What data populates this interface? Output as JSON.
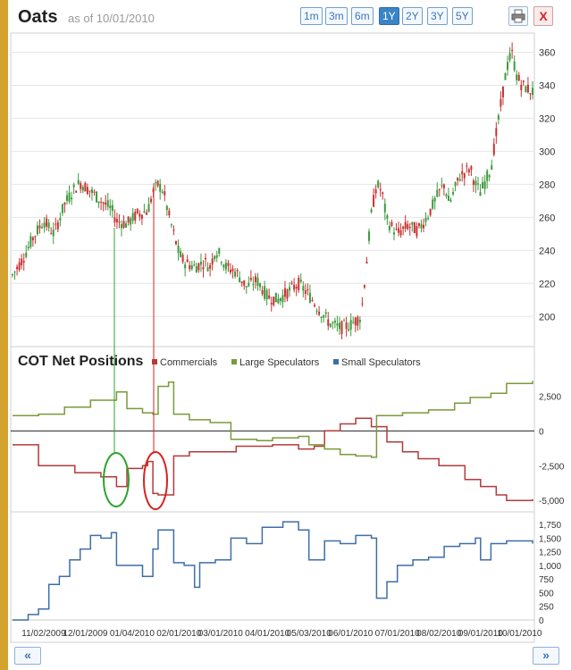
{
  "header": {
    "title": "Oats",
    "as_of": "as of 10/01/2010",
    "ranges": [
      {
        "label": "1m",
        "active": false
      },
      {
        "label": "3m",
        "active": false
      },
      {
        "label": "6m",
        "active": false
      },
      {
        "label": "1Y",
        "active": true
      },
      {
        "label": "2Y",
        "active": false
      },
      {
        "label": "3Y",
        "active": false
      },
      {
        "label": "5Y",
        "active": false
      }
    ],
    "print_icon": "printer-icon",
    "close_label": "X"
  },
  "cot": {
    "title": "COT Net Positions",
    "legend": [
      {
        "name": "Commercials",
        "color": "#b33a3a"
      },
      {
        "name": "Large Speculators",
        "color": "#7a9a3a"
      },
      {
        "name": "Small Speculators",
        "color": "#3e6ea8"
      }
    ]
  },
  "nav": {
    "prev_label": "«",
    "next_label": "»"
  },
  "chart_data": [
    {
      "type": "candlestick",
      "title": "Oats",
      "ylim": [
        185,
        370
      ],
      "yticks": [
        200,
        220,
        240,
        260,
        280,
        300,
        320,
        340,
        360
      ],
      "up_color": "#3d9a3d",
      "down_color": "#c83232",
      "close_points": [
        [
          0,
          225
        ],
        [
          0.02,
          235
        ],
        [
          0.04,
          248
        ],
        [
          0.06,
          258
        ],
        [
          0.08,
          250
        ],
        [
          0.1,
          268
        ],
        [
          0.12,
          278
        ],
        [
          0.13,
          281
        ],
        [
          0.15,
          276
        ],
        [
          0.17,
          270
        ],
        [
          0.19,
          265
        ],
        [
          0.2,
          258
        ],
        [
          0.22,
          256
        ],
        [
          0.24,
          262
        ],
        [
          0.26,
          264
        ],
        [
          0.27,
          275
        ],
        [
          0.28,
          280
        ],
        [
          0.29,
          276
        ],
        [
          0.3,
          262
        ],
        [
          0.31,
          250
        ],
        [
          0.32,
          238
        ],
        [
          0.33,
          233
        ],
        [
          0.35,
          230
        ],
        [
          0.37,
          233
        ],
        [
          0.38,
          230
        ],
        [
          0.39,
          240
        ],
        [
          0.4,
          237
        ],
        [
          0.41,
          230
        ],
        [
          0.43,
          227
        ],
        [
          0.45,
          218
        ],
        [
          0.47,
          222
        ],
        [
          0.49,
          212
        ],
        [
          0.51,
          210
        ],
        [
          0.53,
          215
        ],
        [
          0.55,
          220
        ],
        [
          0.57,
          213
        ],
        [
          0.59,
          204
        ],
        [
          0.61,
          196
        ],
        [
          0.63,
          193
        ],
        [
          0.65,
          195
        ],
        [
          0.67,
          200
        ],
        [
          0.68,
          230
        ],
        [
          0.69,
          262
        ],
        [
          0.7,
          280
        ],
        [
          0.71,
          276
        ],
        [
          0.72,
          258
        ],
        [
          0.74,
          250
        ],
        [
          0.76,
          255
        ],
        [
          0.78,
          252
        ],
        [
          0.8,
          262
        ],
        [
          0.82,
          275
        ],
        [
          0.83,
          280
        ],
        [
          0.84,
          268
        ],
        [
          0.86,
          285
        ],
        [
          0.88,
          290
        ],
        [
          0.89,
          280
        ],
        [
          0.9,
          275
        ],
        [
          0.92,
          290
        ],
        [
          0.93,
          310
        ],
        [
          0.94,
          330
        ],
        [
          0.95,
          350
        ],
        [
          0.96,
          360
        ],
        [
          0.97,
          345
        ],
        [
          0.98,
          340
        ],
        [
          1.0,
          336
        ]
      ]
    },
    {
      "type": "line",
      "title": "COT Net Positions",
      "ylim": [
        -5500,
        4000
      ],
      "yticks": [
        2500,
        0,
        -2500,
        -5000
      ],
      "zero_line": true,
      "series": [
        {
          "name": "Commercials",
          "color": "#b33a3a",
          "points": [
            [
              0,
              -1000
            ],
            [
              0.05,
              -2500
            ],
            [
              0.12,
              -3000
            ],
            [
              0.17,
              -3300
            ],
            [
              0.2,
              -4000
            ],
            [
              0.22,
              -2700
            ],
            [
              0.25,
              -2500
            ],
            [
              0.26,
              -2200
            ],
            [
              0.27,
              -4500
            ],
            [
              0.28,
              -4600
            ],
            [
              0.3,
              -4600
            ],
            [
              0.31,
              -1800
            ],
            [
              0.34,
              -1500
            ],
            [
              0.38,
              -1500
            ],
            [
              0.43,
              -1100
            ],
            [
              0.5,
              -1000
            ],
            [
              0.55,
              -1300
            ],
            [
              0.58,
              -1100
            ],
            [
              0.6,
              0
            ],
            [
              0.63,
              500
            ],
            [
              0.66,
              900
            ],
            [
              0.69,
              300
            ],
            [
              0.72,
              -800
            ],
            [
              0.75,
              -1500
            ],
            [
              0.78,
              -2000
            ],
            [
              0.82,
              -2500
            ],
            [
              0.87,
              -3500
            ],
            [
              0.9,
              -4000
            ],
            [
              0.93,
              -4600
            ],
            [
              0.95,
              -5000
            ],
            [
              1.0,
              -4900
            ]
          ]
        },
        {
          "name": "Large Speculators",
          "color": "#7a9a3a",
          "points": [
            [
              0,
              1100
            ],
            [
              0.05,
              1200
            ],
            [
              0.1,
              1700
            ],
            [
              0.15,
              2200
            ],
            [
              0.2,
              2800
            ],
            [
              0.22,
              1600
            ],
            [
              0.25,
              1300
            ],
            [
              0.27,
              1200
            ],
            [
              0.28,
              3200
            ],
            [
              0.3,
              3500
            ],
            [
              0.31,
              1200
            ],
            [
              0.34,
              800
            ],
            [
              0.38,
              600
            ],
            [
              0.42,
              -600
            ],
            [
              0.47,
              -700
            ],
            [
              0.5,
              -500
            ],
            [
              0.55,
              -400
            ],
            [
              0.57,
              -1000
            ],
            [
              0.6,
              -1300
            ],
            [
              0.63,
              -1700
            ],
            [
              0.66,
              -1800
            ],
            [
              0.69,
              -1900
            ],
            [
              0.7,
              1100
            ],
            [
              0.75,
              1300
            ],
            [
              0.8,
              1500
            ],
            [
              0.85,
              2000
            ],
            [
              0.88,
              2400
            ],
            [
              0.92,
              2700
            ],
            [
              0.95,
              3400
            ],
            [
              1.0,
              3600
            ]
          ]
        }
      ]
    },
    {
      "type": "line",
      "title": "",
      "ylim": [
        0,
        1900
      ],
      "yticks": [
        0,
        250,
        500,
        750,
        1000,
        1250,
        1500,
        1750
      ],
      "series": [
        {
          "name": "Small Speculators",
          "color": "#3e6ea8",
          "points": [
            [
              0,
              0
            ],
            [
              0.03,
              100
            ],
            [
              0.05,
              200
            ],
            [
              0.07,
              650
            ],
            [
              0.09,
              800
            ],
            [
              0.11,
              1100
            ],
            [
              0.13,
              1300
            ],
            [
              0.15,
              1550
            ],
            [
              0.17,
              1500
            ],
            [
              0.19,
              1600
            ],
            [
              0.2,
              1000
            ],
            [
              0.23,
              1000
            ],
            [
              0.25,
              800
            ],
            [
              0.27,
              1300
            ],
            [
              0.28,
              1650
            ],
            [
              0.3,
              1650
            ],
            [
              0.31,
              1050
            ],
            [
              0.33,
              1000
            ],
            [
              0.35,
              600
            ],
            [
              0.36,
              1050
            ],
            [
              0.39,
              1100
            ],
            [
              0.42,
              1500
            ],
            [
              0.45,
              1400
            ],
            [
              0.48,
              1700
            ],
            [
              0.52,
              1800
            ],
            [
              0.55,
              1650
            ],
            [
              0.57,
              1100
            ],
            [
              0.6,
              1450
            ],
            [
              0.63,
              1400
            ],
            [
              0.66,
              1550
            ],
            [
              0.69,
              1500
            ],
            [
              0.7,
              400
            ],
            [
              0.72,
              700
            ],
            [
              0.74,
              1000
            ],
            [
              0.77,
              1100
            ],
            [
              0.8,
              1150
            ],
            [
              0.83,
              1350
            ],
            [
              0.86,
              1400
            ],
            [
              0.89,
              1500
            ],
            [
              0.9,
              1100
            ],
            [
              0.92,
              1400
            ],
            [
              0.95,
              1450
            ],
            [
              1.0,
              1400
            ]
          ]
        }
      ]
    }
  ],
  "x_axis": {
    "labels": [
      "11/02/2009",
      "12/01/2009",
      "01/04/2010",
      "02/01/2010",
      "03/01/2010",
      "04/01/2010",
      "05/03/2010",
      "06/01/2010",
      "07/01/2010",
      "08/02/2010",
      "09/01/2010",
      "10/01/2010"
    ]
  },
  "annotations": {
    "ellipse_colors": [
      "#2aa52a",
      "#d82222"
    ]
  }
}
